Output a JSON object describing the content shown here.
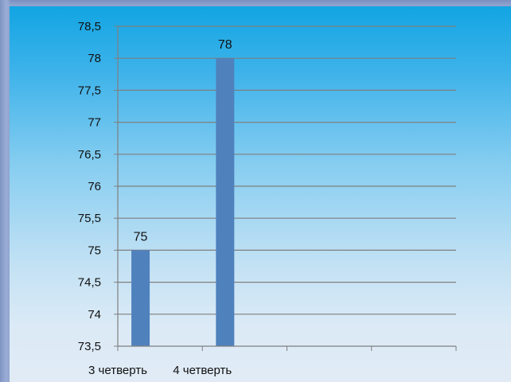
{
  "chart_data": {
    "type": "bar",
    "categories": [
      "3 четверть",
      "4 четверть"
    ],
    "values": [
      75,
      78
    ],
    "data_labels": [
      "75",
      "78"
    ],
    "ylim": [
      73.5,
      78.5
    ],
    "y_ticks": [
      73.5,
      74,
      74.5,
      75,
      75.5,
      76,
      76.5,
      77,
      77.5,
      78,
      78.5
    ],
    "y_tick_labels": [
      "73,5",
      "74",
      "74,5",
      "75",
      "75,5",
      "76",
      "76,5",
      "77",
      "77,5",
      "78",
      "78,5"
    ],
    "x_slots": 4,
    "grid": true,
    "legend": "none",
    "title": "",
    "xlabel": "",
    "ylabel": "",
    "colors": {
      "bar": "#4f81bd",
      "gridline": "#7f7f7f",
      "axis": "#7f7f7f"
    }
  }
}
